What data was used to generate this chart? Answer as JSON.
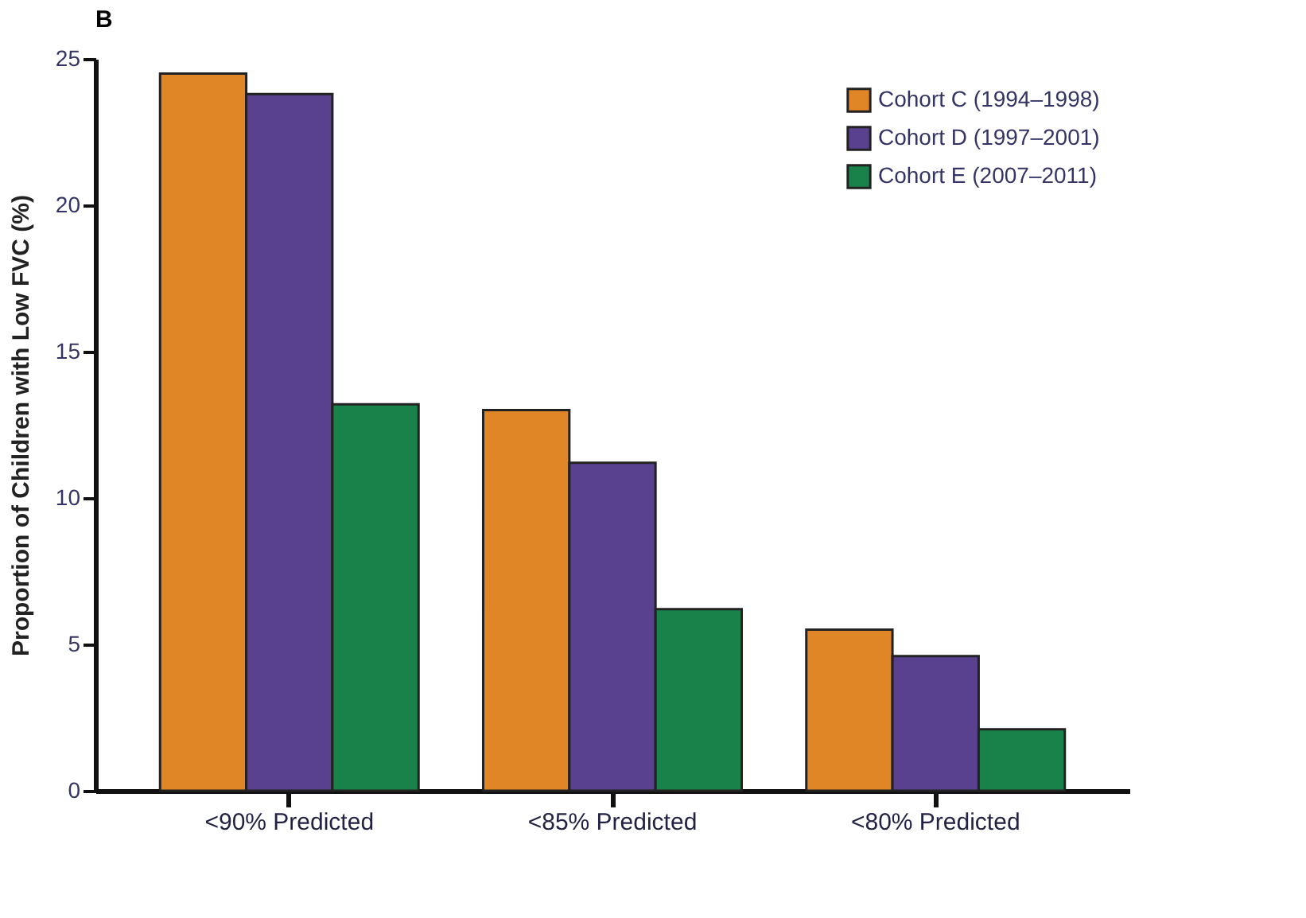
{
  "chart_data": {
    "type": "bar",
    "title": "B",
    "ylabel": "Proportion of Children with Low FVC (%)",
    "categories": [
      "<90% Predicted",
      "<85% Predicted",
      "<80% Predicted"
    ],
    "series": [
      {
        "name": "Cohort C (1994–1998)",
        "color": "#e08626",
        "values": [
          24.5,
          13.0,
          5.5
        ]
      },
      {
        "name": "Cohort D (1997–2001)",
        "color": "#5a4190",
        "values": [
          23.8,
          11.2,
          4.6
        ]
      },
      {
        "name": "Cohort E (2007–2011)",
        "color": "#18824a",
        "values": [
          13.2,
          6.2,
          2.1
        ]
      }
    ],
    "ylim": [
      0,
      25
    ],
    "yticks": [
      0,
      5,
      10,
      15,
      20,
      25
    ],
    "grid": false,
    "legend": "top right"
  }
}
